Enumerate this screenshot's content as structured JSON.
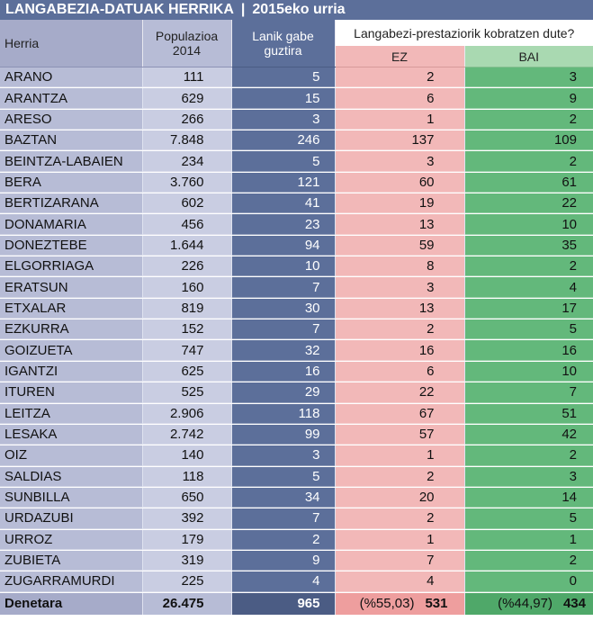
{
  "title": {
    "main": "LANGABEZIA-DATUAK HERRIKA",
    "separator": "|",
    "period": "2015eko urria"
  },
  "header": {
    "herria": "Herria",
    "populazioa_l1": "Populazioa",
    "populazioa_l2": "2014",
    "lanik_l1": "Lanik gabe",
    "lanik_l2": "guztira",
    "group": "Langabezi-prestaziorik kobratzen dute?",
    "ez": "EZ",
    "bai": "BAI"
  },
  "rows": [
    {
      "herria": "ARANO",
      "populazioa": "111",
      "lanik_gabe": "5",
      "ez": "2",
      "bai": "3"
    },
    {
      "herria": "ARANTZA",
      "populazioa": "629",
      "lanik_gabe": "15",
      "ez": "6",
      "bai": "9"
    },
    {
      "herria": "ARESO",
      "populazioa": "266",
      "lanik_gabe": "3",
      "ez": "1",
      "bai": "2"
    },
    {
      "herria": "BAZTAN",
      "populazioa": "7.848",
      "lanik_gabe": "246",
      "ez": "137",
      "bai": "109"
    },
    {
      "herria": "BEINTZA-LABAIEN",
      "populazioa": "234",
      "lanik_gabe": "5",
      "ez": "3",
      "bai": "2"
    },
    {
      "herria": "BERA",
      "populazioa": "3.760",
      "lanik_gabe": "121",
      "ez": "60",
      "bai": "61"
    },
    {
      "herria": "BERTIZARANA",
      "populazioa": "602",
      "lanik_gabe": "41",
      "ez": "19",
      "bai": "22"
    },
    {
      "herria": "DONAMARIA",
      "populazioa": "456",
      "lanik_gabe": "23",
      "ez": "13",
      "bai": "10"
    },
    {
      "herria": "DONEZTEBE",
      "populazioa": "1.644",
      "lanik_gabe": "94",
      "ez": "59",
      "bai": "35"
    },
    {
      "herria": "ELGORRIAGA",
      "populazioa": "226",
      "lanik_gabe": "10",
      "ez": "8",
      "bai": "2"
    },
    {
      "herria": "ERATSUN",
      "populazioa": "160",
      "lanik_gabe": "7",
      "ez": "3",
      "bai": "4"
    },
    {
      "herria": "ETXALAR",
      "populazioa": "819",
      "lanik_gabe": "30",
      "ez": "13",
      "bai": "17"
    },
    {
      "herria": "EZKURRA",
      "populazioa": "152",
      "lanik_gabe": "7",
      "ez": "2",
      "bai": "5"
    },
    {
      "herria": "GOIZUETA",
      "populazioa": "747",
      "lanik_gabe": "32",
      "ez": "16",
      "bai": "16"
    },
    {
      "herria": "IGANTZI",
      "populazioa": "625",
      "lanik_gabe": "16",
      "ez": "6",
      "bai": "10"
    },
    {
      "herria": "ITUREN",
      "populazioa": "525",
      "lanik_gabe": "29",
      "ez": "22",
      "bai": "7"
    },
    {
      "herria": "LEITZA",
      "populazioa": "2.906",
      "lanik_gabe": "118",
      "ez": "67",
      "bai": "51"
    },
    {
      "herria": "LESAKA",
      "populazioa": "2.742",
      "lanik_gabe": "99",
      "ez": "57",
      "bai": "42"
    },
    {
      "herria": "OIZ",
      "populazioa": "140",
      "lanik_gabe": "3",
      "ez": "1",
      "bai": "2"
    },
    {
      "herria": "SALDIAS",
      "populazioa": "118",
      "lanik_gabe": "5",
      "ez": "2",
      "bai": "3"
    },
    {
      "herria": "SUNBILLA",
      "populazioa": "650",
      "lanik_gabe": "34",
      "ez": "20",
      "bai": "14"
    },
    {
      "herria": "URDAZUBI",
      "populazioa": "392",
      "lanik_gabe": "7",
      "ez": "2",
      "bai": "5"
    },
    {
      "herria": "URROZ",
      "populazioa": "179",
      "lanik_gabe": "2",
      "ez": "1",
      "bai": "1"
    },
    {
      "herria": "ZUBIETA",
      "populazioa": "319",
      "lanik_gabe": "9",
      "ez": "7",
      "bai": "2"
    },
    {
      "herria": "ZUGARRAMURDI",
      "populazioa": "225",
      "lanik_gabe": "4",
      "ez": "4",
      "bai": "0"
    }
  ],
  "totals": {
    "label": "Denetara",
    "populazioa": "26.475",
    "lanik_gabe": "965",
    "ez_pct": "(%55,03)",
    "ez": "531",
    "bai_pct": "(%44,97)",
    "bai": "434"
  },
  "colors": {
    "title_bg": "#5c6f9a",
    "name_col": "#b7bcd6",
    "pop_col": "#c9cde2",
    "lanik_col": "#5c6f9a",
    "ez_col": "#f2b8b8",
    "bai_col": "#63b87b"
  }
}
